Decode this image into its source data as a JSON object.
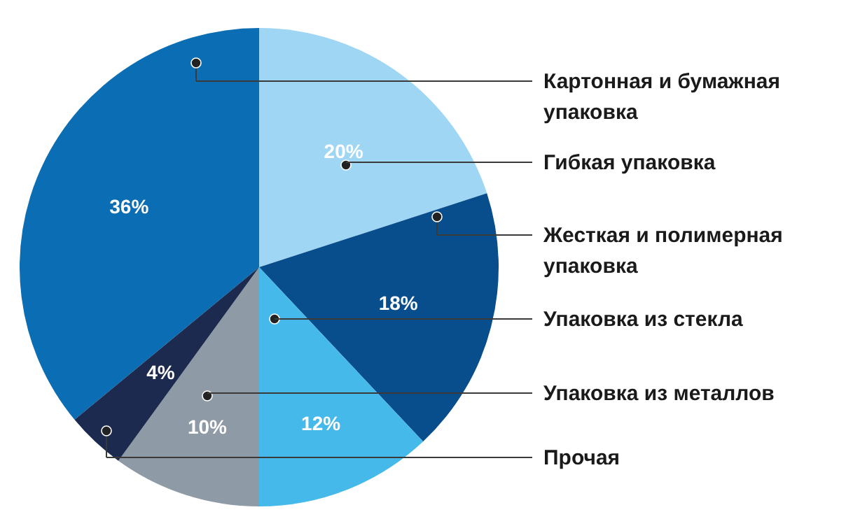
{
  "chart_data": {
    "type": "pie",
    "categories": [
      "Картонная и бумажная упаковка",
      "Гибкая упаковка",
      "Жесткая и полимерная упаковка",
      "Упаковка из стекла",
      "Упаковка из металлов",
      "Прочая"
    ],
    "values": [
      36,
      20,
      18,
      12,
      10,
      4
    ],
    "value_labels": [
      "36%",
      "20%",
      "18%",
      "12%",
      "10%",
      "4%"
    ],
    "colors": [
      "#0b6db3",
      "#9fd6f3",
      "#084d8c",
      "#44b9ea",
      "#8e9aa5",
      "#1b2a4e"
    ]
  }
}
